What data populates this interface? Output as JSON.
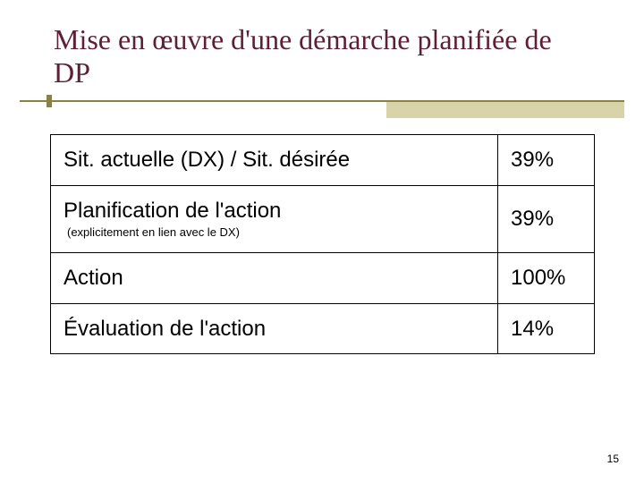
{
  "title": "Mise en œuvre d'une démarche planifiée de DP",
  "title_color": "#5c1f34",
  "hr_color": "#8a8144",
  "hr_shadow_color": "#d8d3a9",
  "table": {
    "border_color": "#000000",
    "rows": [
      {
        "label": "Sit. actuelle (DX) / Sit. désirée",
        "value": "39%",
        "note": ""
      },
      {
        "label": "Planification de l'action",
        "value": "39%",
        "note": "(explicitement en lien avec le DX)"
      },
      {
        "label": "Action",
        "value": "100%",
        "note": ""
      },
      {
        "label": "Évaluation de l'action",
        "value": "14%",
        "note": ""
      }
    ]
  },
  "page_number": "15"
}
